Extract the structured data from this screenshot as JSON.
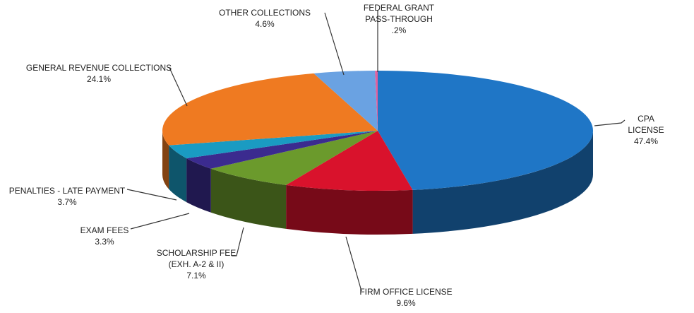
{
  "chart_data": {
    "type": "pie3d",
    "categories": [
      "CPA LICENSE",
      "FIRM OFFICE LICENSE",
      "SCHOLARSHIP FEE\n(EXH. A-2 & II)",
      "EXAM FEES",
      "PENALTIES - LATE PAYMENT",
      "GENERAL REVENUE COLLECTIONS",
      "OTHER COLLECTIONS",
      "FEDERAL GRANT\nPASS-THROUGH"
    ],
    "values": [
      47.4,
      9.6,
      7.1,
      3.3,
      3.7,
      24.1,
      4.6,
      0.2
    ],
    "value_labels": [
      "47.4%",
      "9.6%",
      "7.1%",
      "3.3%",
      "3.7%",
      "24.1%",
      "4.6%",
      ".2%"
    ],
    "colors": [
      "#1f76c6",
      "#d9122c",
      "#6b9a2c",
      "#3b2b8f",
      "#1a9bc2",
      "#ef7a21",
      "#6aa2e2",
      "#e0609e"
    ]
  }
}
